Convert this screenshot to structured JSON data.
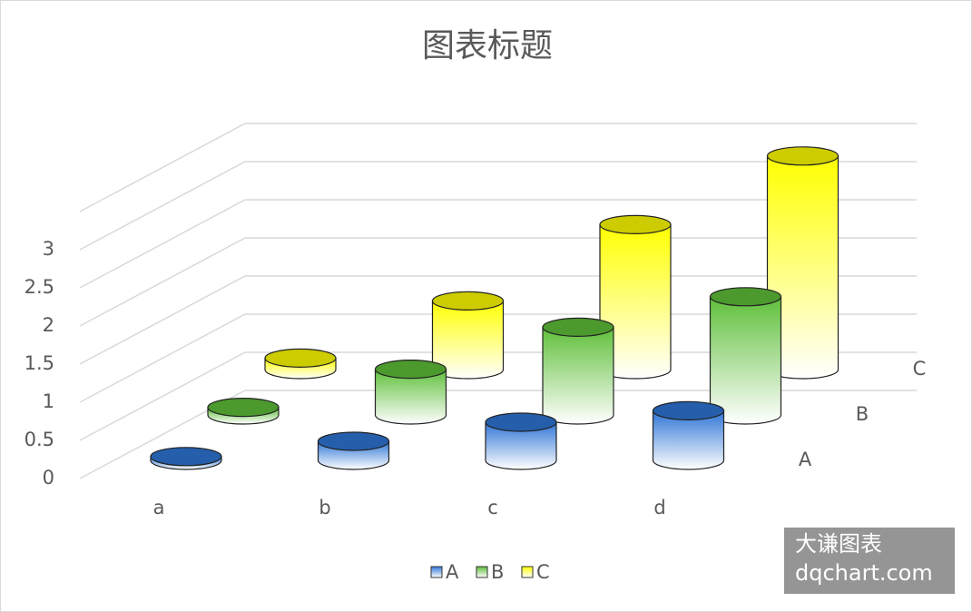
{
  "chart_data": {
    "type": "cylinder3d",
    "title": "图表标题",
    "categories": [
      "a",
      "b",
      "c",
      "d"
    ],
    "series": [
      {
        "name": "A",
        "color": "#2e75d6",
        "values": [
          0.05,
          0.25,
          0.5,
          0.65
        ]
      },
      {
        "name": "B",
        "color": "#5fbf3a",
        "values": [
          0.1,
          0.6,
          1.15,
          1.55
        ]
      },
      {
        "name": "C",
        "color": "#ffff00",
        "values": [
          0.15,
          0.9,
          1.9,
          2.8
        ]
      }
    ],
    "ylim": [
      0,
      3.5
    ],
    "yticks": [
      0,
      0.5,
      1,
      1.5,
      2,
      2.5,
      3
    ],
    "grid": true,
    "legend": "bottom",
    "watermark": [
      "大谦图表",
      "dqchart.com"
    ]
  }
}
